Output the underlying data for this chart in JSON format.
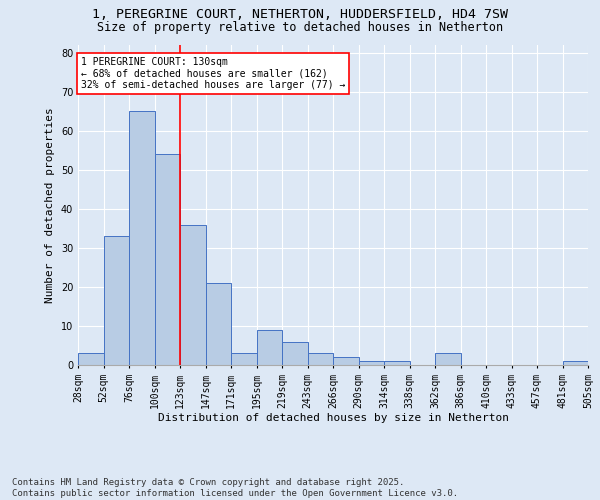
{
  "title_line1": "1, PEREGRINE COURT, NETHERTON, HUDDERSFIELD, HD4 7SW",
  "title_line2": "Size of property relative to detached houses in Netherton",
  "xlabel": "Distribution of detached houses by size in Netherton",
  "ylabel": "Number of detached properties",
  "bar_values": [
    3,
    33,
    65,
    54,
    36,
    21,
    3,
    9,
    6,
    3,
    2,
    1,
    1,
    0,
    3,
    0,
    0,
    0,
    0,
    1
  ],
  "categories": [
    "28sqm",
    "52sqm",
    "76sqm",
    "100sqm",
    "123sqm",
    "147sqm",
    "171sqm",
    "195sqm",
    "219sqm",
    "243sqm",
    "266sqm",
    "290sqm",
    "314sqm",
    "338sqm",
    "362sqm",
    "386sqm",
    "410sqm",
    "433sqm",
    "457sqm",
    "481sqm",
    "505sqm"
  ],
  "bar_color": "#b8cce4",
  "bar_edge_color": "#4472c4",
  "background_color": "#dde8f5",
  "plot_bg_color": "#dde8f5",
  "grid_color": "#ffffff",
  "vline_color": "red",
  "annotation_title": "1 PEREGRINE COURT: 130sqm",
  "annotation_line1": "← 68% of detached houses are smaller (162)",
  "annotation_line2": "32% of semi-detached houses are larger (77) →",
  "annotation_box_color": "white",
  "annotation_box_edge_color": "red",
  "ylim": [
    0,
    82
  ],
  "yticks": [
    0,
    10,
    20,
    30,
    40,
    50,
    60,
    70,
    80
  ],
  "footer_line1": "Contains HM Land Registry data © Crown copyright and database right 2025.",
  "footer_line2": "Contains public sector information licensed under the Open Government Licence v3.0.",
  "title_fontsize": 9.5,
  "subtitle_fontsize": 8.5,
  "axis_label_fontsize": 8,
  "tick_fontsize": 7,
  "annotation_fontsize": 7,
  "footer_fontsize": 6.5
}
